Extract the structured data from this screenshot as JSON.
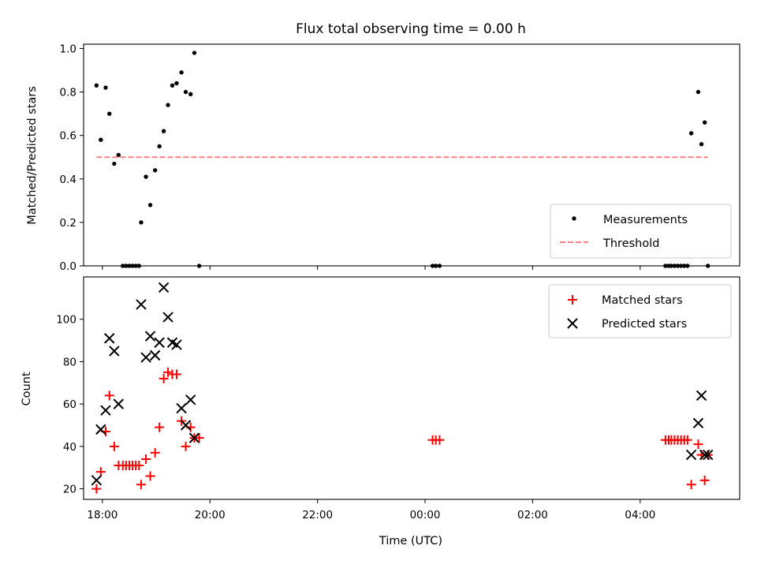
{
  "figure": {
    "title": "Flux total observing time = 0.00 h",
    "xlabel": "Time (UTC)"
  },
  "chart_data": [
    {
      "type": "scatter",
      "panel": "top",
      "title": "Flux total observing time = 0.00 h",
      "xlabel": "",
      "ylabel": "Matched/Predicted stars",
      "x_unit": "hours since 18:00 UTC",
      "xlim": [
        -0.35,
        11.85
      ],
      "ylim": [
        0.0,
        1.02
      ],
      "yticks": [
        0.0,
        0.2,
        0.4,
        0.6,
        0.8,
        1.0
      ],
      "ytick_labels": [
        "0.0",
        "0.2",
        "0.4",
        "0.6",
        "0.8",
        "1.0"
      ],
      "xticks": [
        0,
        2,
        4,
        6,
        8,
        10
      ],
      "xtick_labels": [
        "",
        "",
        "",
        "",
        "",
        ""
      ],
      "legend_position": "lower-right",
      "grid": false,
      "series": [
        {
          "name": "Measurements",
          "marker": "dot",
          "color": "#000000",
          "x": [
            -0.11,
            -0.03,
            0.06,
            0.13,
            0.22,
            0.3,
            0.38,
            0.44,
            0.5,
            0.56,
            0.62,
            0.68,
            0.72,
            0.81,
            0.89,
            0.98,
            1.06,
            1.14,
            1.22,
            1.3,
            1.38,
            1.47,
            1.55,
            1.64,
            1.71,
            1.8,
            6.14,
            6.2,
            6.27,
            10.47,
            10.53,
            10.58,
            10.64,
            10.7,
            10.76,
            10.82,
            10.88,
            10.95,
            11.08,
            11.14,
            11.2,
            11.26
          ],
          "y": [
            0.83,
            0.58,
            0.82,
            0.7,
            0.47,
            0.51,
            0.0,
            0.0,
            0.0,
            0.0,
            0.0,
            0.0,
            0.2,
            0.41,
            0.28,
            0.44,
            0.55,
            0.62,
            0.74,
            0.83,
            0.84,
            0.89,
            0.8,
            0.79,
            0.98,
            0.0,
            0.0,
            0.0,
            0.0,
            0.0,
            0.0,
            0.0,
            0.0,
            0.0,
            0.0,
            0.0,
            0.0,
            0.61,
            0.8,
            0.56,
            0.66,
            0.0
          ]
        },
        {
          "name": "Threshold",
          "line_style": "dashed",
          "color": "#ff8080",
          "x": [
            -0.11,
            11.26
          ],
          "y": [
            0.5,
            0.5
          ]
        }
      ]
    },
    {
      "type": "scatter",
      "panel": "bottom",
      "xlabel": "Time (UTC)",
      "ylabel": "Count",
      "x_unit": "hours since 18:00 UTC",
      "xlim": [
        -0.35,
        11.85
      ],
      "ylim": [
        15,
        120
      ],
      "yticks": [
        20,
        40,
        60,
        80,
        100
      ],
      "ytick_labels": [
        "20",
        "40",
        "60",
        "80",
        "100"
      ],
      "xticks": [
        0,
        2,
        4,
        6,
        8,
        10
      ],
      "xtick_labels": [
        "18:00",
        "20:00",
        "22:00",
        "00:00",
        "02:00",
        "04:00"
      ],
      "legend_position": "upper-right",
      "grid": false,
      "series": [
        {
          "name": "Matched stars",
          "marker": "plus",
          "color": "#ff0000",
          "x": [
            -0.11,
            -0.03,
            0.06,
            0.13,
            0.22,
            0.3,
            0.38,
            0.44,
            0.5,
            0.56,
            0.62,
            0.68,
            0.72,
            0.81,
            0.89,
            0.98,
            1.06,
            1.14,
            1.22,
            1.3,
            1.38,
            1.47,
            1.55,
            1.64,
            1.71,
            1.8,
            6.14,
            6.2,
            6.27,
            10.47,
            10.53,
            10.58,
            10.64,
            10.7,
            10.76,
            10.82,
            10.88,
            10.95,
            11.08,
            11.14,
            11.2,
            11.26
          ],
          "y": [
            20,
            28,
            47,
            64,
            40,
            31,
            31,
            31,
            31,
            31,
            31,
            31,
            22,
            34,
            26,
            37,
            49,
            72,
            75,
            74,
            74,
            52,
            40,
            49,
            44,
            44,
            43,
            43,
            43,
            43,
            43,
            43,
            43,
            43,
            43,
            43,
            43,
            22,
            41,
            36,
            24,
            36
          ]
        },
        {
          "name": "Predicted stars",
          "marker": "x",
          "color": "#000000",
          "x": [
            -0.11,
            -0.03,
            0.06,
            0.13,
            0.22,
            0.3,
            0.72,
            0.81,
            0.89,
            0.98,
            1.06,
            1.14,
            1.22,
            1.3,
            1.38,
            1.47,
            1.55,
            1.64,
            1.71,
            10.95,
            11.08,
            11.14,
            11.2,
            11.26
          ],
          "y": [
            24,
            48,
            57,
            91,
            85,
            60,
            107,
            82,
            92,
            83,
            89,
            115,
            101,
            89,
            88,
            58,
            50,
            62,
            44,
            36,
            51,
            64,
            36,
            36
          ]
        }
      ]
    }
  ]
}
